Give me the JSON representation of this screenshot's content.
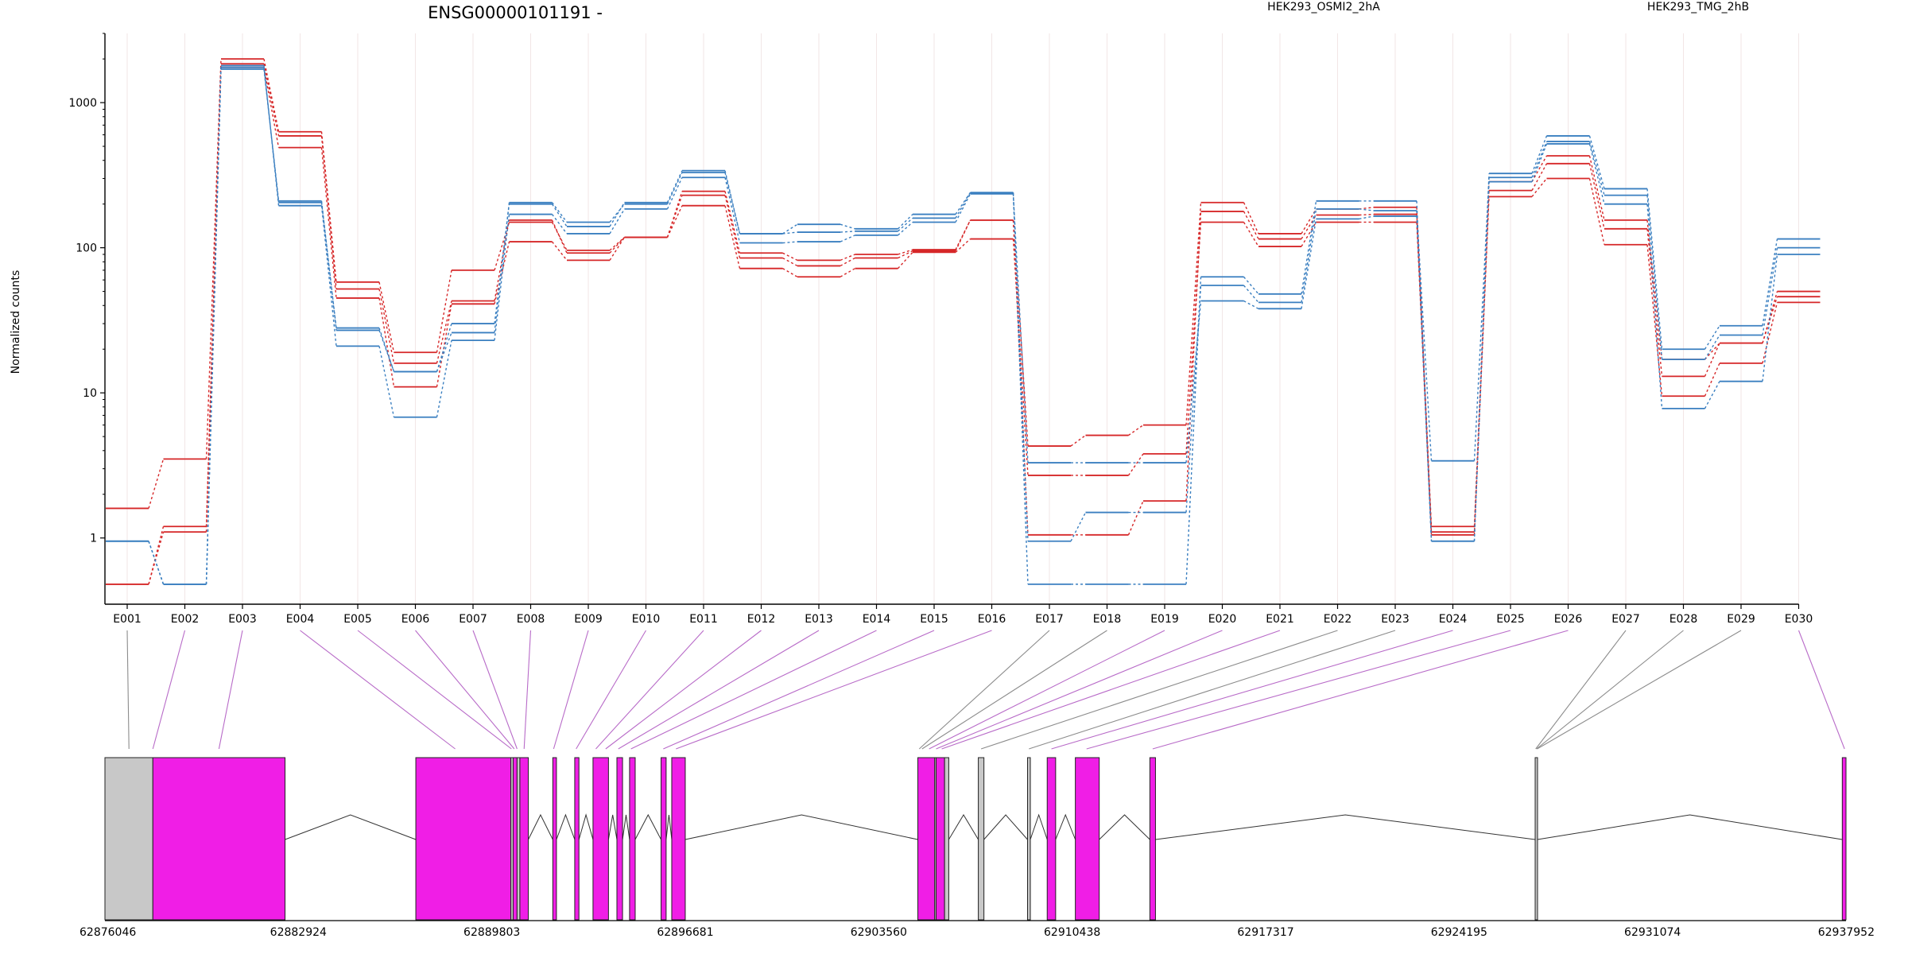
{
  "chart_data": {
    "type": "line",
    "title": "ENSG00000101191 -",
    "ylabel": "Normalized counts",
    "yscale": "log",
    "ylim": [
      0.45,
      3000
    ],
    "yticks": [
      1,
      10,
      100,
      1000
    ],
    "ytick_labels": [
      "1",
      "10",
      "100",
      "1000"
    ],
    "categories": [
      "E001",
      "E002",
      "E003",
      "E004",
      "E005",
      "E006",
      "E007",
      "E008",
      "E009",
      "E010",
      "E011",
      "E012",
      "E013",
      "E014",
      "E015",
      "E016",
      "E017",
      "E018",
      "E019",
      "E020",
      "E021",
      "E022",
      "E023",
      "E024",
      "E025",
      "E026",
      "E027",
      "E028",
      "E029",
      "E030"
    ],
    "colors": {
      "HEK293_OSMI2_2hA": "#d62728",
      "HEK293_TMG_2hB": "#3a7fc0",
      "exon_tested": "#f01ee6",
      "exon_untested": "#c8c8c8",
      "connector": "#b86bc8",
      "connector_grey": "#8c8c8c"
    },
    "legend": [
      {
        "name": "HEK293_OSMI2_2hA",
        "color": "#d62728"
      },
      {
        "name": "HEK293_TMG_2hB",
        "color": "#3a7fc0"
      }
    ],
    "series": [
      {
        "group": "HEK293_OSMI2_2hA",
        "values": [
          1.6,
          3.5,
          2000,
          630,
          58,
          19,
          70,
          150,
          96,
          118,
          245,
          92,
          82,
          90,
          97,
          155,
          4.3,
          5.1,
          6.0,
          205,
          125,
          185,
          190,
          1.2,
          285,
          430,
          155,
          17,
          22,
          50
        ]
      },
      {
        "group": "HEK293_OSMI2_2hA",
        "values": [
          0.48,
          1.1,
          1750,
          490,
          45,
          11,
          41,
          110,
          82,
          118,
          195,
          72,
          63,
          72,
          93,
          115,
          2.7,
          2.7,
          3.8,
          150,
          102,
          150,
          150,
          1.05,
          225,
          300,
          105,
          9.5,
          16,
          42
        ]
      },
      {
        "group": "HEK293_OSMI2_2hA",
        "values": [
          0.48,
          1.2,
          1850,
          590,
          52,
          16,
          43,
          155,
          92,
          118,
          230,
          85,
          75,
          85,
          95,
          155,
          1.05,
          1.05,
          1.8,
          178,
          115,
          168,
          170,
          1.1,
          248,
          380,
          135,
          13,
          22,
          46
        ]
      },
      {
        "group": "HEK293_TMG_2hB",
        "values": [
          0.95,
          0.48,
          1700,
          210,
          27,
          14,
          26,
          205,
          150,
          200,
          330,
          125,
          145,
          135,
          170,
          240,
          0.48,
          0.48,
          0.48,
          63,
          48,
          210,
          210,
          0.95,
          325,
          590,
          255,
          20,
          29,
          115
        ]
      },
      {
        "group": "HEK293_TMG_2hB",
        "values": [
          0.95,
          0.48,
          1800,
          195,
          21,
          6.8,
          23,
          170,
          125,
          185,
          305,
          108,
          110,
          122,
          150,
          235,
          3.3,
          3.3,
          3.3,
          43,
          38,
          158,
          165,
          0.95,
          285,
          520,
          200,
          7.8,
          12,
          90
        ]
      },
      {
        "group": "HEK293_TMG_2hB",
        "values": [
          0.95,
          0.48,
          1750,
          205,
          28,
          14,
          30,
          200,
          140,
          205,
          340,
          125,
          128,
          130,
          160,
          240,
          0.95,
          1.5,
          1.5,
          55,
          42,
          185,
          180,
          3.4,
          305,
          540,
          230,
          17,
          25,
          100
        ]
      }
    ],
    "gene_model": {
      "axis_ticks": [
        "62876046",
        "62882924",
        "62889803",
        "62896681",
        "62903560",
        "62910438",
        "62917317",
        "62924195",
        "62931074",
        "62937952"
      ],
      "range": [
        62876046,
        62937952
      ],
      "blocks": [
        {
          "start": 62876046,
          "end": 62877750,
          "tested": false
        },
        {
          "start": 62877750,
          "end": 62882450,
          "tested": true
        },
        {
          "start": 62887100,
          "end": 62890480,
          "tested": true
        },
        {
          "start": 62890480,
          "end": 62890560,
          "tested": false
        },
        {
          "start": 62890560,
          "end": 62890700,
          "tested": true
        },
        {
          "start": 62890700,
          "end": 62890800,
          "tested": false
        },
        {
          "start": 62890800,
          "end": 62891100,
          "tested": true
        },
        {
          "start": 62891970,
          "end": 62892100,
          "tested": true
        },
        {
          "start": 62892750,
          "end": 62892900,
          "tested": true
        },
        {
          "start": 62893400,
          "end": 62893950,
          "tested": true
        },
        {
          "start": 62894250,
          "end": 62894450,
          "tested": true
        },
        {
          "start": 62894700,
          "end": 62894900,
          "tested": true
        },
        {
          "start": 62895820,
          "end": 62896000,
          "tested": true
        },
        {
          "start": 62896200,
          "end": 62896680,
          "tested": true
        },
        {
          "start": 62904950,
          "end": 62905550,
          "tested": true
        },
        {
          "start": 62905550,
          "end": 62905600,
          "tested": false
        },
        {
          "start": 62905600,
          "end": 62905900,
          "tested": true
        },
        {
          "start": 62905900,
          "end": 62906050,
          "tested": false
        },
        {
          "start": 62907100,
          "end": 62907300,
          "tested": false
        },
        {
          "start": 62908850,
          "end": 62908950,
          "tested": false
        },
        {
          "start": 62909550,
          "end": 62909850,
          "tested": true
        },
        {
          "start": 62910550,
          "end": 62911400,
          "tested": true
        },
        {
          "start": 62913200,
          "end": 62913400,
          "tested": true
        },
        {
          "start": 62926900,
          "end": 62926980,
          "tested": false
        },
        {
          "start": 62937820,
          "end": 62937952,
          "tested": true
        }
      ],
      "connectors": [
        {
          "exon": "E001",
          "g": 62876900,
          "tested": false
        },
        {
          "exon": "E002",
          "g": 62877750,
          "tested": true
        },
        {
          "exon": "E003",
          "g": 62880100,
          "tested": true
        },
        {
          "exon": "E004",
          "g": 62888500,
          "tested": true
        },
        {
          "exon": "E005",
          "g": 62890500,
          "tested": true
        },
        {
          "exon": "E006",
          "g": 62890600,
          "tested": true
        },
        {
          "exon": "E007",
          "g": 62890700,
          "tested": true
        },
        {
          "exon": "E008",
          "g": 62890950,
          "tested": true
        },
        {
          "exon": "E009",
          "g": 62892000,
          "tested": true
        },
        {
          "exon": "E010",
          "g": 62892800,
          "tested": true
        },
        {
          "exon": "E011",
          "g": 62893500,
          "tested": true
        },
        {
          "exon": "E012",
          "g": 62893850,
          "tested": true
        },
        {
          "exon": "E013",
          "g": 62894300,
          "tested": true
        },
        {
          "exon": "E014",
          "g": 62894750,
          "tested": true
        },
        {
          "exon": "E015",
          "g": 62895900,
          "tested": true
        },
        {
          "exon": "E016",
          "g": 62896350,
          "tested": true
        },
        {
          "exon": "E017",
          "g": 62905000,
          "tested": false
        },
        {
          "exon": "E018",
          "g": 62905100,
          "tested": false
        },
        {
          "exon": "E019",
          "g": 62905350,
          "tested": true
        },
        {
          "exon": "E020",
          "g": 62905600,
          "tested": true
        },
        {
          "exon": "E021",
          "g": 62905800,
          "tested": true
        },
        {
          "exon": "E022",
          "g": 62907200,
          "tested": false
        },
        {
          "exon": "E023",
          "g": 62908900,
          "tested": false
        },
        {
          "exon": "E024",
          "g": 62909700,
          "tested": true
        },
        {
          "exon": "E025",
          "g": 62910950,
          "tested": true
        },
        {
          "exon": "E026",
          "g": 62913300,
          "tested": true
        },
        {
          "exon": "E027",
          "g": 62926920,
          "tested": false
        },
        {
          "exon": "E028",
          "g": 62926950,
          "tested": false
        },
        {
          "exon": "E029",
          "g": 62926970,
          "tested": false
        },
        {
          "exon": "E030",
          "g": 62937900,
          "tested": true
        }
      ]
    }
  }
}
